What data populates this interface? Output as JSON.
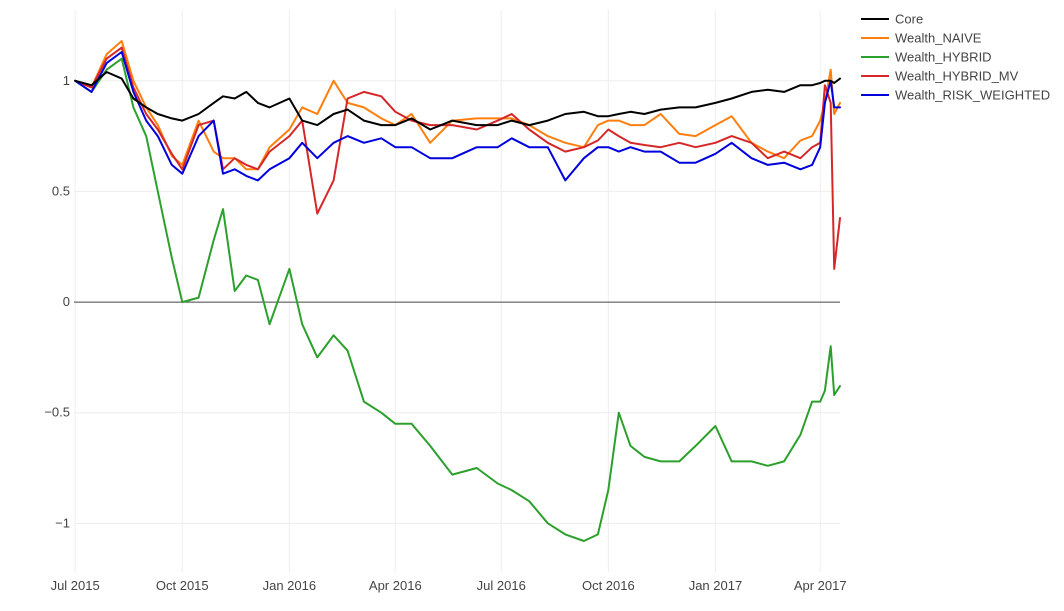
{
  "chart_data": {
    "type": "line",
    "title": "",
    "xlabel": "",
    "ylabel": "",
    "x_ticks": [
      "Jul 2015",
      "Oct 2015",
      "Jan 2016",
      "Apr 2016",
      "Jul 2016",
      "Oct 2016",
      "Jan 2017",
      "Apr 2017"
    ],
    "y_ticks": [
      "1",
      "0.5",
      "0",
      "−0.5",
      "−1"
    ],
    "y_tick_values": [
      1,
      0.5,
      0,
      -0.5,
      -1
    ],
    "xlim": [
      "2015-06-30",
      "2017-04-18"
    ],
    "ylim": [
      -1.22,
      1.32
    ],
    "grid": true,
    "legend_position": "top-right",
    "x": [
      "2015-07-01",
      "2015-07-15",
      "2015-07-28",
      "2015-08-10",
      "2015-08-20",
      "2015-08-31",
      "2015-09-10",
      "2015-09-22",
      "2015-10-01",
      "2015-10-15",
      "2015-10-28",
      "2015-11-05",
      "2015-11-15",
      "2015-11-25",
      "2015-12-05",
      "2015-12-15",
      "2016-01-01",
      "2016-01-12",
      "2016-01-25",
      "2016-02-08",
      "2016-02-20",
      "2016-03-05",
      "2016-03-20",
      "2016-04-01",
      "2016-04-15",
      "2016-05-01",
      "2016-05-20",
      "2016-06-10",
      "2016-06-28",
      "2016-07-10",
      "2016-07-25",
      "2016-08-10",
      "2016-08-25",
      "2016-09-10",
      "2016-09-22",
      "2016-10-01",
      "2016-10-10",
      "2016-10-20",
      "2016-11-01",
      "2016-11-15",
      "2016-12-01",
      "2016-12-15",
      "2017-01-01",
      "2017-01-15",
      "2017-02-01",
      "2017-02-15",
      "2017-03-01",
      "2017-03-15",
      "2017-03-25",
      "2017-04-01",
      "2017-04-05",
      "2017-04-10",
      "2017-04-13",
      "2017-04-18"
    ],
    "series": [
      {
        "name": "Core",
        "color": "#000000",
        "values": [
          1.0,
          0.98,
          1.04,
          1.01,
          0.92,
          0.88,
          0.85,
          0.83,
          0.82,
          0.85,
          0.9,
          0.93,
          0.92,
          0.95,
          0.9,
          0.88,
          0.92,
          0.82,
          0.8,
          0.85,
          0.87,
          0.82,
          0.8,
          0.8,
          0.83,
          0.78,
          0.82,
          0.8,
          0.8,
          0.82,
          0.8,
          0.82,
          0.85,
          0.86,
          0.84,
          0.84,
          0.85,
          0.86,
          0.85,
          0.87,
          0.88,
          0.88,
          0.9,
          0.92,
          0.95,
          0.96,
          0.95,
          0.98,
          0.98,
          0.99,
          1.0,
          1.0,
          0.99,
          1.01
        ]
      },
      {
        "name": "Wealth_NAIVE",
        "color": "#ff7f0e",
        "values": [
          1.0,
          0.97,
          1.12,
          1.18,
          1.0,
          0.88,
          0.8,
          0.66,
          0.62,
          0.82,
          0.68,
          0.65,
          0.65,
          0.6,
          0.6,
          0.7,
          0.78,
          0.88,
          0.85,
          1.0,
          0.9,
          0.88,
          0.83,
          0.8,
          0.85,
          0.72,
          0.82,
          0.83,
          0.83,
          0.83,
          0.8,
          0.75,
          0.72,
          0.7,
          0.8,
          0.82,
          0.82,
          0.8,
          0.8,
          0.85,
          0.76,
          0.75,
          0.8,
          0.84,
          0.72,
          0.68,
          0.65,
          0.73,
          0.75,
          0.82,
          0.9,
          1.05,
          0.85,
          0.9
        ]
      },
      {
        "name": "Wealth_HYBRID",
        "color": "#2ca02c",
        "values": [
          1.0,
          0.95,
          1.05,
          1.1,
          0.88,
          0.75,
          0.5,
          0.2,
          0.0,
          0.02,
          0.28,
          0.42,
          0.05,
          0.12,
          0.1,
          -0.1,
          0.15,
          -0.1,
          -0.25,
          -0.15,
          -0.22,
          -0.45,
          -0.5,
          -0.55,
          -0.55,
          -0.65,
          -0.78,
          -0.75,
          -0.82,
          -0.85,
          -0.9,
          -1.0,
          -1.05,
          -1.08,
          -1.05,
          -0.85,
          -0.5,
          -0.65,
          -0.7,
          -0.72,
          -0.72,
          -0.65,
          -0.56,
          -0.72,
          -0.72,
          -0.74,
          -0.72,
          -0.6,
          -0.45,
          -0.45,
          -0.4,
          -0.2,
          -0.42,
          -0.38
        ]
      },
      {
        "name": "Wealth_HYBRID_MV",
        "color": "#d62728",
        "values": [
          1.0,
          0.97,
          1.1,
          1.15,
          0.97,
          0.85,
          0.78,
          0.67,
          0.6,
          0.8,
          0.82,
          0.6,
          0.65,
          0.62,
          0.6,
          0.68,
          0.75,
          0.82,
          0.4,
          0.55,
          0.92,
          0.95,
          0.93,
          0.86,
          0.82,
          0.8,
          0.8,
          0.78,
          0.82,
          0.85,
          0.78,
          0.72,
          0.68,
          0.7,
          0.73,
          0.78,
          0.75,
          0.72,
          0.71,
          0.7,
          0.72,
          0.7,
          0.72,
          0.75,
          0.72,
          0.65,
          0.68,
          0.65,
          0.7,
          0.72,
          0.98,
          0.9,
          0.15,
          0.38
        ]
      },
      {
        "name": "Wealth_RISK_WEIGHTED",
        "color": "#0000dd",
        "values": [
          1.0,
          0.95,
          1.08,
          1.13,
          0.95,
          0.82,
          0.75,
          0.62,
          0.58,
          0.75,
          0.82,
          0.58,
          0.6,
          0.57,
          0.55,
          0.6,
          0.65,
          0.72,
          0.65,
          0.72,
          0.75,
          0.72,
          0.74,
          0.7,
          0.7,
          0.65,
          0.65,
          0.7,
          0.7,
          0.74,
          0.7,
          0.7,
          0.55,
          0.65,
          0.7,
          0.7,
          0.68,
          0.7,
          0.68,
          0.68,
          0.63,
          0.63,
          0.67,
          0.72,
          0.65,
          0.62,
          0.63,
          0.6,
          0.62,
          0.7,
          0.9,
          1.0,
          0.88,
          0.88
        ]
      }
    ]
  }
}
